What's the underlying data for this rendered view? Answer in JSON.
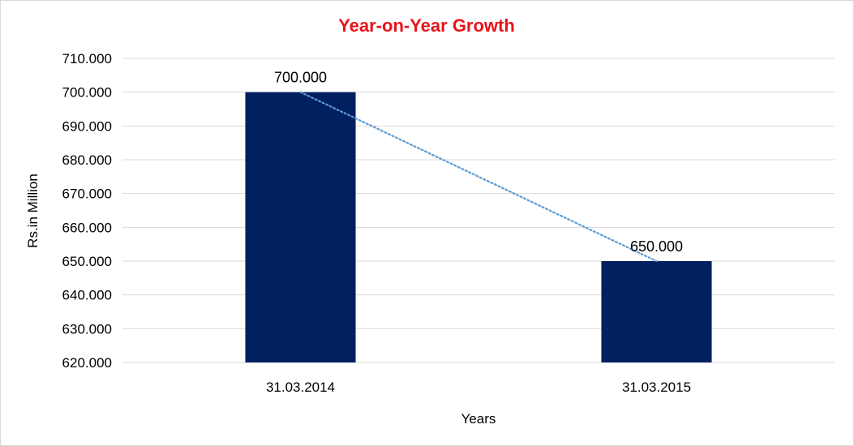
{
  "chart_data": {
    "type": "bar",
    "title": "Year-on-Year Growth",
    "xlabel": "Years",
    "ylabel": "Rs.in Million",
    "categories": [
      "31.03.2014",
      "31.03.2015"
    ],
    "values": [
      700,
      650
    ],
    "value_labels": [
      "700.000",
      "650.000"
    ],
    "ylim": [
      620,
      710
    ],
    "y_ticks": [
      620,
      630,
      640,
      650,
      660,
      670,
      680,
      690,
      700,
      710
    ],
    "y_tick_labels": [
      "620.000",
      "630.000",
      "640.000",
      "650.000",
      "660.000",
      "670.000",
      "680.000",
      "690.000",
      "700.000",
      "710.000"
    ],
    "grid": true,
    "trendline": "linear",
    "colors": {
      "title": "#e8141b",
      "bar": "#002060",
      "grid": "#d9d9d9",
      "trendline": "#5b9bd5"
    }
  }
}
